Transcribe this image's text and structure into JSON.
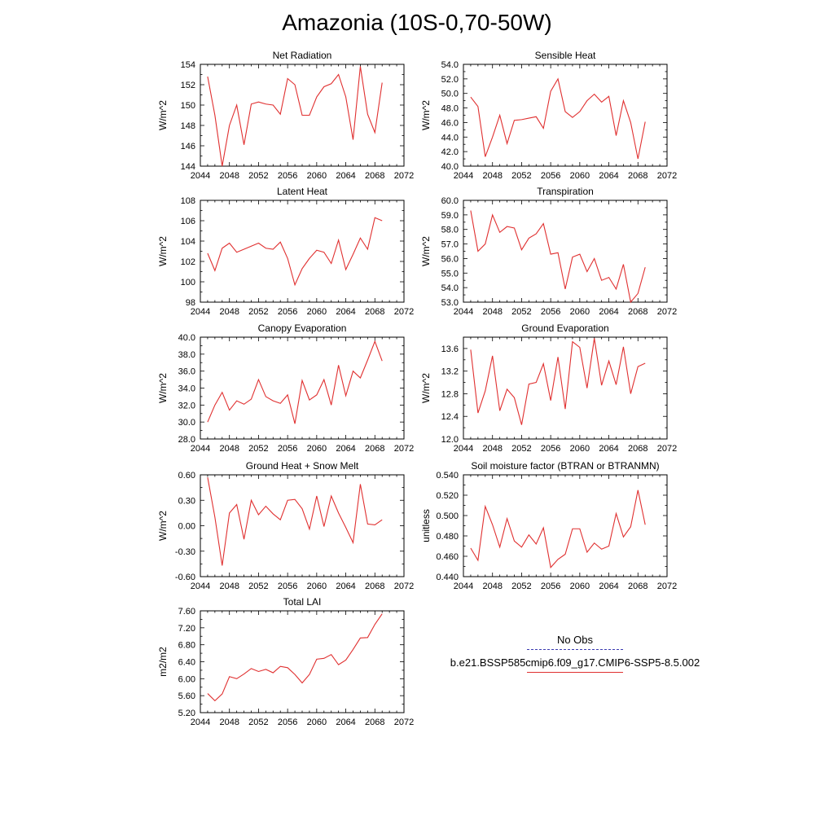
{
  "title": "Amazonia (10S-0,70-50W)",
  "legend": {
    "items": [
      {
        "label": "No Obs",
        "color": "#3a3ab0",
        "style": "dashed"
      },
      {
        "label": "b.e21.BSSP585cmip6.f09_g17.CMIP6-SSP5-8.5.002",
        "color": "#e03030",
        "style": "solid"
      }
    ]
  },
  "line_color": "#e03030",
  "chart_data": [
    {
      "type": "line",
      "title": "Net Radiation",
      "xlabel": "",
      "ylabel": "W/m^2",
      "xlim": [
        2044,
        2072
      ],
      "ylim": [
        144,
        154
      ],
      "xticks": [
        2044,
        2048,
        2052,
        2056,
        2060,
        2064,
        2068,
        2072
      ],
      "yticks": [
        "144",
        "146",
        "148",
        "150",
        "152",
        "154"
      ],
      "x": [
        2045,
        2046,
        2047,
        2048,
        2049,
        2050,
        2051,
        2052,
        2053,
        2054,
        2055,
        2056,
        2057,
        2058,
        2059,
        2060,
        2061,
        2062,
        2063,
        2064,
        2065,
        2066,
        2067,
        2068,
        2069
      ],
      "series": [
        {
          "values": [
            152.8,
            149.0,
            144.0,
            148.0,
            150.0,
            146.1,
            150.1,
            150.3,
            150.1,
            150.0,
            149.1,
            152.6,
            152.0,
            149.0,
            149.0,
            150.8,
            151.8,
            152.1,
            153.0,
            150.8,
            146.6,
            153.8,
            149.1,
            147.3,
            152.2
          ]
        }
      ]
    },
    {
      "type": "line",
      "title": "Sensible Heat",
      "xlabel": "",
      "ylabel": "W/m^2",
      "xlim": [
        2044,
        2072
      ],
      "ylim": [
        40.0,
        54.0
      ],
      "xticks": [
        2044,
        2048,
        2052,
        2056,
        2060,
        2064,
        2068,
        2072
      ],
      "yticks": [
        "40.0",
        "42.0",
        "44.0",
        "46.0",
        "48.0",
        "50.0",
        "52.0",
        "54.0"
      ],
      "x": [
        2045,
        2046,
        2047,
        2048,
        2049,
        2050,
        2051,
        2052,
        2053,
        2054,
        2055,
        2056,
        2057,
        2058,
        2059,
        2060,
        2061,
        2062,
        2063,
        2064,
        2065,
        2066,
        2067,
        2068,
        2069
      ],
      "series": [
        {
          "values": [
            49.5,
            48.2,
            41.3,
            44.0,
            47.0,
            43.1,
            46.3,
            46.4,
            46.6,
            46.8,
            45.2,
            50.3,
            52.0,
            47.5,
            46.7,
            47.5,
            49.0,
            49.9,
            48.8,
            49.6,
            44.2,
            49.0,
            46.0,
            41.0,
            46.1
          ]
        }
      ]
    },
    {
      "type": "line",
      "title": "Latent Heat",
      "xlabel": "",
      "ylabel": "W/m^2",
      "xlim": [
        2044,
        2072
      ],
      "ylim": [
        98,
        108
      ],
      "xticks": [
        2044,
        2048,
        2052,
        2056,
        2060,
        2064,
        2068,
        2072
      ],
      "yticks": [
        "98",
        "100",
        "102",
        "104",
        "106",
        "108"
      ],
      "x": [
        2045,
        2046,
        2047,
        2048,
        2049,
        2050,
        2051,
        2052,
        2053,
        2054,
        2055,
        2056,
        2057,
        2058,
        2059,
        2060,
        2061,
        2062,
        2063,
        2064,
        2065,
        2066,
        2067,
        2068,
        2069
      ],
      "series": [
        {
          "values": [
            102.8,
            101.1,
            103.3,
            103.8,
            102.9,
            103.2,
            103.5,
            103.8,
            103.3,
            103.2,
            103.9,
            102.3,
            99.7,
            101.3,
            102.3,
            103.1,
            102.9,
            101.8,
            104.1,
            101.2,
            102.7,
            104.3,
            103.2,
            106.3,
            106.0
          ]
        }
      ]
    },
    {
      "type": "line",
      "title": "Transpiration",
      "xlabel": "",
      "ylabel": "W/m^2",
      "xlim": [
        2044,
        2072
      ],
      "ylim": [
        53.0,
        60.0
      ],
      "xticks": [
        2044,
        2048,
        2052,
        2056,
        2060,
        2064,
        2068,
        2072
      ],
      "yticks": [
        "53.0",
        "54.0",
        "55.0",
        "56.0",
        "57.0",
        "58.0",
        "59.0",
        "60.0"
      ],
      "x": [
        2045,
        2046,
        2047,
        2048,
        2049,
        2050,
        2051,
        2052,
        2053,
        2054,
        2055,
        2056,
        2057,
        2058,
        2059,
        2060,
        2061,
        2062,
        2063,
        2064,
        2065,
        2066,
        2067,
        2068,
        2069
      ],
      "series": [
        {
          "values": [
            59.3,
            56.5,
            57.0,
            59.0,
            57.8,
            58.2,
            58.1,
            56.6,
            57.4,
            57.7,
            58.4,
            56.3,
            56.4,
            53.9,
            56.1,
            56.3,
            55.1,
            56.0,
            54.5,
            54.7,
            53.9,
            55.6,
            53.0,
            53.6,
            55.4
          ]
        }
      ]
    },
    {
      "type": "line",
      "title": "Canopy Evaporation",
      "xlabel": "",
      "ylabel": "W/m^2",
      "xlim": [
        2044,
        2072
      ],
      "ylim": [
        28.0,
        40.0
      ],
      "xticks": [
        2044,
        2048,
        2052,
        2056,
        2060,
        2064,
        2068,
        2072
      ],
      "yticks": [
        "28.0",
        "30.0",
        "32.0",
        "34.0",
        "36.0",
        "38.0",
        "40.0"
      ],
      "x": [
        2045,
        2046,
        2047,
        2048,
        2049,
        2050,
        2051,
        2052,
        2053,
        2054,
        2055,
        2056,
        2057,
        2058,
        2059,
        2060,
        2061,
        2062,
        2063,
        2064,
        2065,
        2066,
        2067,
        2068,
        2069
      ],
      "series": [
        {
          "values": [
            30.0,
            32.0,
            33.5,
            31.4,
            32.5,
            32.1,
            32.7,
            35.0,
            33.0,
            32.5,
            32.2,
            33.2,
            29.8,
            34.9,
            32.6,
            33.2,
            35.0,
            32.0,
            36.7,
            33.1,
            36.0,
            35.2,
            37.3,
            39.5,
            37.2
          ]
        }
      ]
    },
    {
      "type": "line",
      "title": "Ground Evaporation",
      "xlabel": "",
      "ylabel": "W/m^2",
      "xlim": [
        2044,
        2072
      ],
      "ylim": [
        12.0,
        13.8
      ],
      "xticks": [
        2044,
        2048,
        2052,
        2056,
        2060,
        2064,
        2068,
        2072
      ],
      "yticks": [
        "12.0",
        "12.4",
        "12.8",
        "13.2",
        "13.6"
      ],
      "x": [
        2045,
        2046,
        2047,
        2048,
        2049,
        2050,
        2051,
        2052,
        2053,
        2054,
        2055,
        2056,
        2057,
        2058,
        2059,
        2060,
        2061,
        2062,
        2063,
        2064,
        2065,
        2066,
        2067,
        2068,
        2069
      ],
      "series": [
        {
          "values": [
            13.58,
            12.46,
            12.85,
            13.47,
            12.5,
            12.88,
            12.73,
            12.25,
            12.97,
            13.0,
            13.33,
            12.68,
            13.45,
            12.53,
            13.72,
            13.62,
            12.9,
            13.78,
            12.95,
            13.38,
            12.96,
            13.63,
            12.8,
            13.28,
            13.34
          ]
        }
      ]
    },
    {
      "type": "line",
      "title": "Ground Heat + Snow Melt",
      "xlabel": "",
      "ylabel": "W/m^2",
      "xlim": [
        2044,
        2072
      ],
      "ylim": [
        -0.6,
        0.6
      ],
      "xticks": [
        2044,
        2048,
        2052,
        2056,
        2060,
        2064,
        2068,
        2072
      ],
      "yticks": [
        "-0.60",
        "-0.30",
        "0.00",
        "0.30",
        "0.60"
      ],
      "x": [
        2045,
        2046,
        2047,
        2048,
        2049,
        2050,
        2051,
        2052,
        2053,
        2054,
        2055,
        2056,
        2057,
        2058,
        2059,
        2060,
        2061,
        2062,
        2063,
        2064,
        2065,
        2066,
        2067,
        2068,
        2069
      ],
      "series": [
        {
          "values": [
            0.57,
            0.1,
            -0.47,
            0.15,
            0.25,
            -0.16,
            0.3,
            0.13,
            0.23,
            0.14,
            0.07,
            0.3,
            0.31,
            0.2,
            -0.04,
            0.35,
            -0.01,
            0.35,
            0.15,
            -0.02,
            -0.2,
            0.49,
            0.02,
            0.01,
            0.07
          ]
        }
      ]
    },
    {
      "type": "line",
      "title": "Soil moisture factor (BTRAN or BTRANMN)",
      "xlabel": "",
      "ylabel": "unitless",
      "xlim": [
        2044,
        2072
      ],
      "ylim": [
        0.44,
        0.54
      ],
      "xticks": [
        2044,
        2048,
        2052,
        2056,
        2060,
        2064,
        2068,
        2072
      ],
      "yticks": [
        "0.440",
        "0.460",
        "0.480",
        "0.500",
        "0.520",
        "0.540"
      ],
      "x": [
        2045,
        2046,
        2047,
        2048,
        2049,
        2050,
        2051,
        2052,
        2053,
        2054,
        2055,
        2056,
        2057,
        2058,
        2059,
        2060,
        2061,
        2062,
        2063,
        2064,
        2065,
        2066,
        2067,
        2068,
        2069
      ],
      "series": [
        {
          "values": [
            0.468,
            0.456,
            0.509,
            0.491,
            0.469,
            0.497,
            0.475,
            0.469,
            0.481,
            0.472,
            0.488,
            0.449,
            0.457,
            0.462,
            0.487,
            0.487,
            0.464,
            0.473,
            0.467,
            0.47,
            0.502,
            0.479,
            0.489,
            0.525,
            0.491
          ]
        }
      ]
    },
    {
      "type": "line",
      "title": "Total LAI",
      "xlabel": "",
      "ylabel": "m2/m2",
      "xlim": [
        2044,
        2072
      ],
      "ylim": [
        5.2,
        7.6
      ],
      "xticks": [
        2044,
        2048,
        2052,
        2056,
        2060,
        2064,
        2068,
        2072
      ],
      "yticks": [
        "5.20",
        "5.60",
        "6.00",
        "6.40",
        "6.80",
        "7.20",
        "7.60"
      ],
      "x": [
        2045,
        2046,
        2047,
        2048,
        2049,
        2050,
        2051,
        2052,
        2053,
        2054,
        2055,
        2056,
        2057,
        2058,
        2059,
        2060,
        2061,
        2062,
        2063,
        2064,
        2065,
        2066,
        2067,
        2068,
        2069
      ],
      "series": [
        {
          "values": [
            5.65,
            5.48,
            5.64,
            6.05,
            6.0,
            6.11,
            6.24,
            6.17,
            6.22,
            6.14,
            6.29,
            6.26,
            6.1,
            5.9,
            6.1,
            6.46,
            6.48,
            6.57,
            6.33,
            6.44,
            6.69,
            6.96,
            6.97,
            7.28,
            7.53
          ]
        }
      ]
    }
  ]
}
